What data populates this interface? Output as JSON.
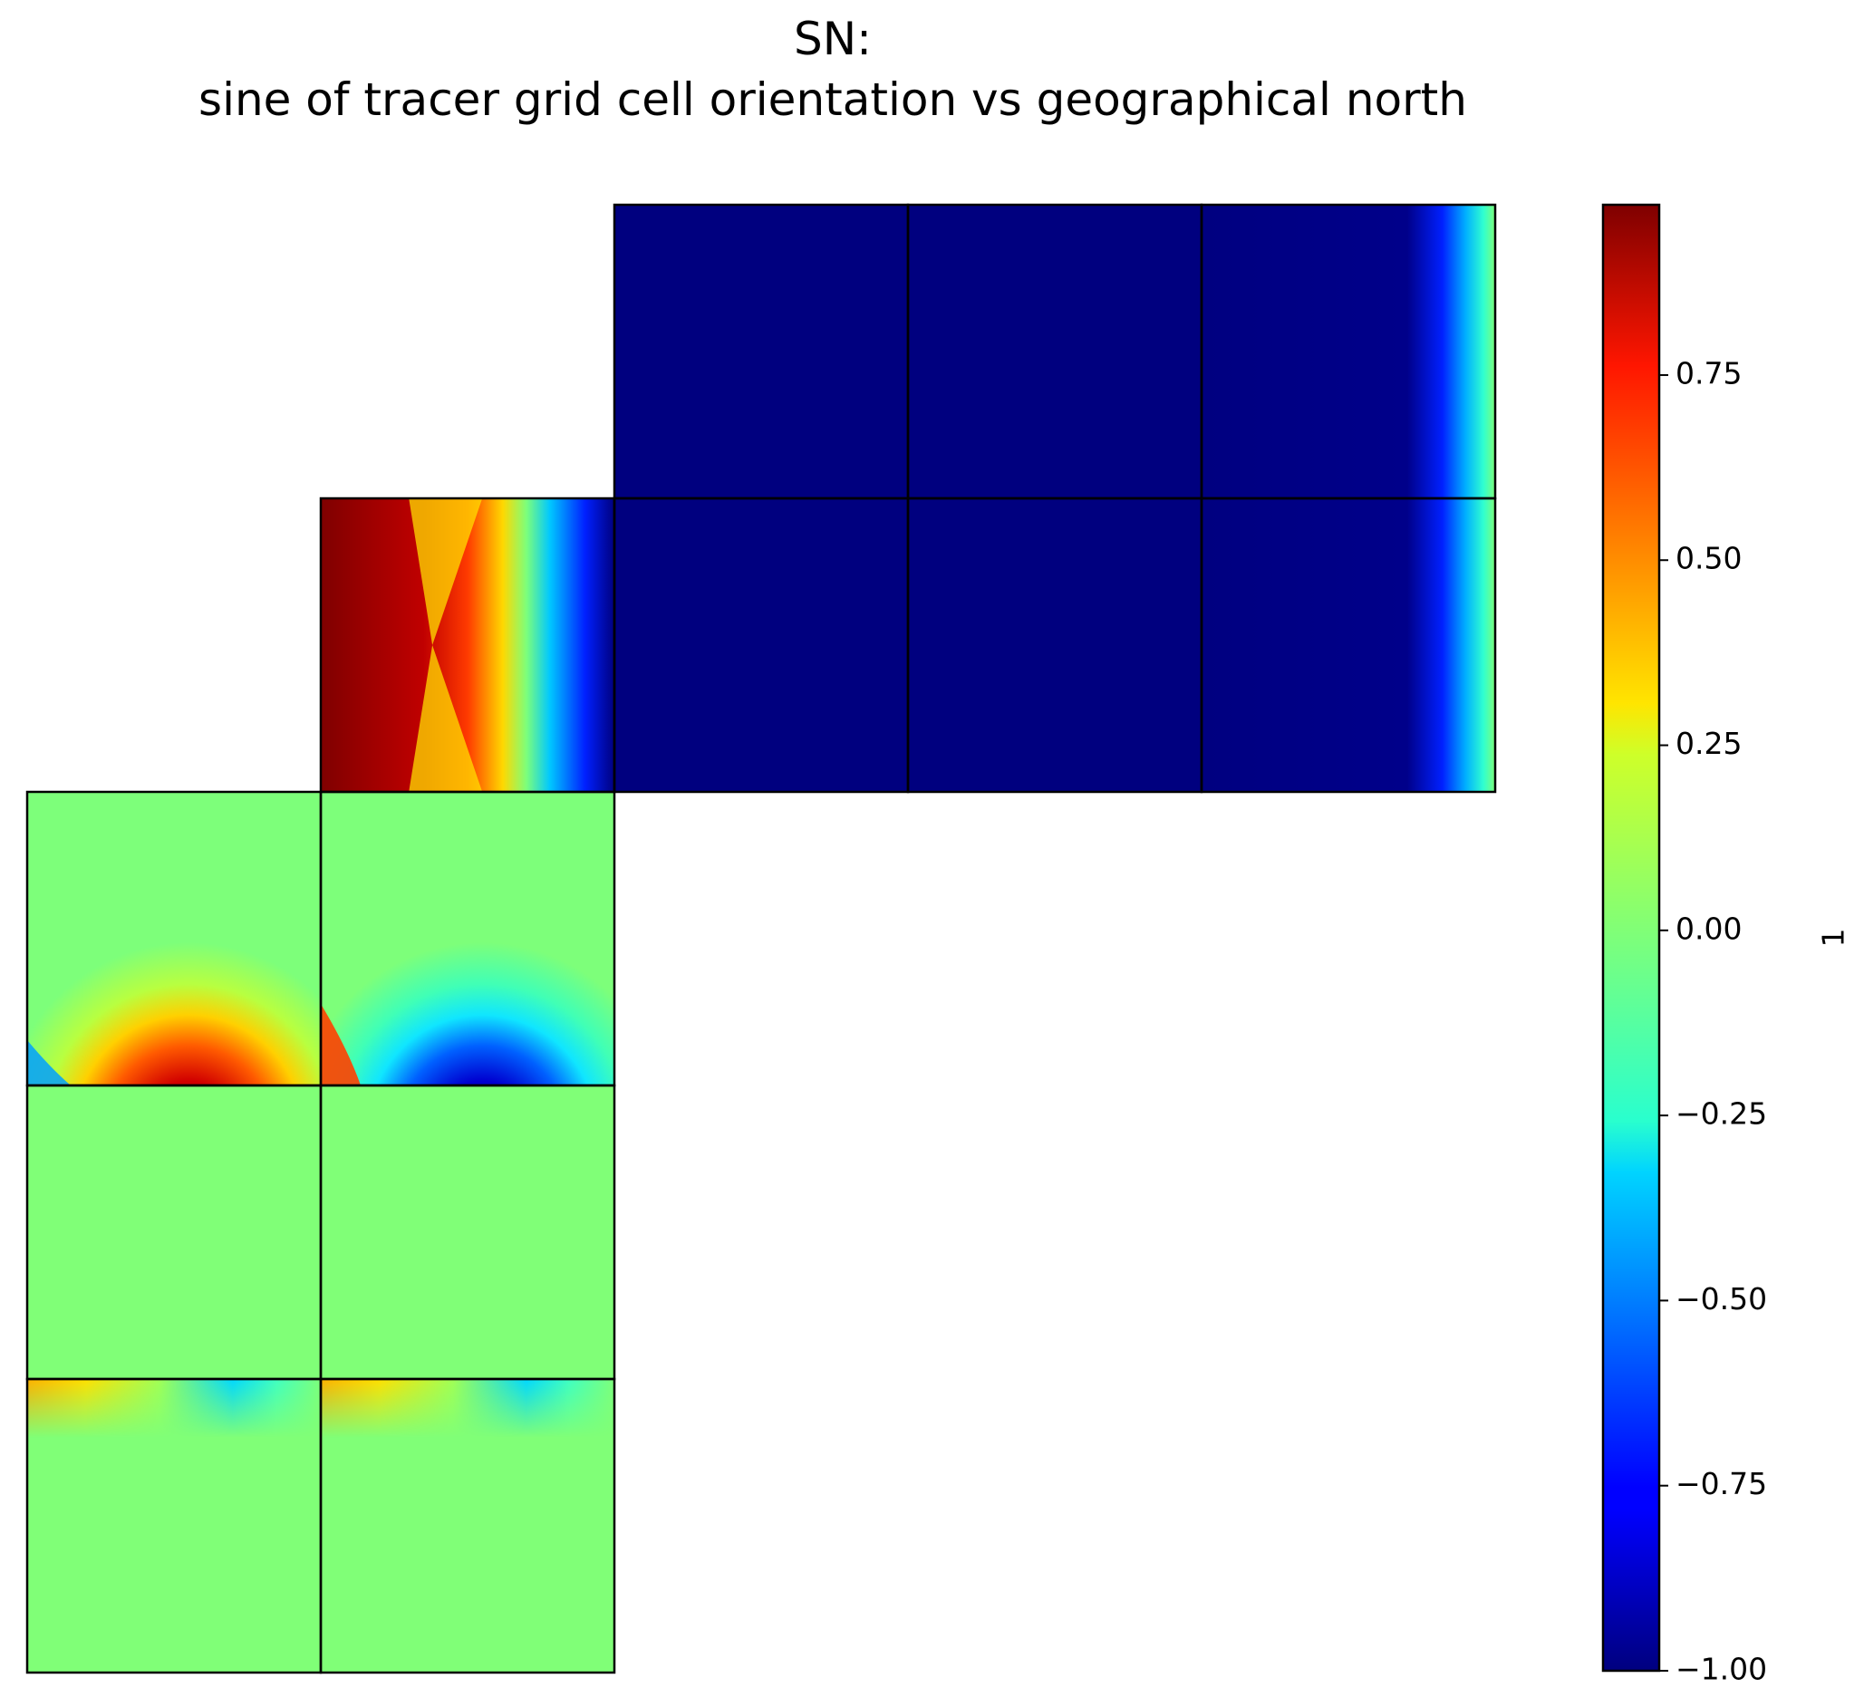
{
  "chart_data": {
    "type": "heatmap",
    "title_line1": "SN:",
    "title_line2": "sine of tracer grid cell orientation vs geographical north",
    "colormap": "jet",
    "colorbar": {
      "label": "1",
      "vmin": -1.0,
      "vmax": 0.98,
      "ticks": [
        0.75,
        0.5,
        0.25,
        0.0,
        -0.25,
        -0.5,
        -0.75,
        -1.0
      ],
      "tick_labels": [
        "0.75",
        "0.50",
        "0.25",
        "0.00",
        "−0.25",
        "−0.50",
        "−0.75",
        "−1.00"
      ]
    },
    "tiles": [
      {
        "name": "tile-1",
        "col": 0,
        "row": 2,
        "value": 0.0,
        "pattern": "bottom-pole-red"
      },
      {
        "name": "tile-2",
        "col": 1,
        "row": 2,
        "value": 0.0,
        "pattern": "bottom-pole-blue"
      },
      {
        "name": "tile-3",
        "col": 0,
        "row": 3,
        "value": 0.0,
        "pattern": "uniform"
      },
      {
        "name": "tile-4",
        "col": 1,
        "row": 3,
        "value": 0.0,
        "pattern": "uniform"
      },
      {
        "name": "tile-5",
        "col": 0,
        "row": 4,
        "value": 0.0,
        "pattern": "top-edge-red-blue"
      },
      {
        "name": "tile-6",
        "col": 1,
        "row": 4,
        "value": 0.0,
        "pattern": "top-edge-red-blue"
      },
      {
        "name": "tile-7",
        "col": 1,
        "row": 1,
        "value": 0.0,
        "pattern": "center-pole"
      },
      {
        "name": "tile-8",
        "col": 2,
        "row": 1,
        "value": -1.0,
        "pattern": "uniform"
      },
      {
        "name": "tile-9",
        "col": 3,
        "row": 1,
        "value": -1.0,
        "pattern": "uniform"
      },
      {
        "name": "tile-10",
        "col": 4,
        "row": 1,
        "value": -1.0,
        "pattern": "right-edge-bump"
      },
      {
        "name": "tile-11",
        "col": 2,
        "row": 0,
        "value": -1.0,
        "pattern": "uniform"
      },
      {
        "name": "tile-12",
        "col": 3,
        "row": 0,
        "value": -1.0,
        "pattern": "uniform"
      },
      {
        "name": "tile-13",
        "col": 4,
        "row": 0,
        "value": -1.0,
        "pattern": "right-edge-bump"
      }
    ]
  }
}
